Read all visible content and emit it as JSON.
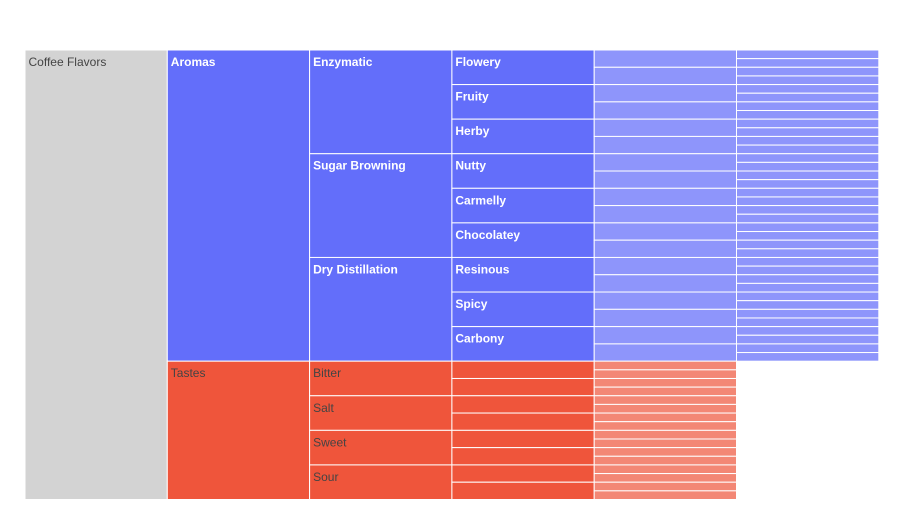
{
  "chart_data": {
    "type": "icicle",
    "root": {
      "label": "Coffee Flavors",
      "children": [
        {
          "label": "Aromas",
          "children": [
            {
              "label": "Enzymatic",
              "children": [
                {
                  "label": "Flowery",
                  "children": [
                    {
                      "label": "",
                      "children": [
                        {
                          "label": ""
                        },
                        {
                          "label": ""
                        }
                      ]
                    },
                    {
                      "label": "",
                      "children": [
                        {
                          "label": ""
                        },
                        {
                          "label": ""
                        }
                      ]
                    }
                  ]
                },
                {
                  "label": "Fruity",
                  "children": [
                    {
                      "label": "",
                      "children": [
                        {
                          "label": ""
                        },
                        {
                          "label": ""
                        }
                      ]
                    },
                    {
                      "label": "",
                      "children": [
                        {
                          "label": ""
                        },
                        {
                          "label": ""
                        }
                      ]
                    }
                  ]
                },
                {
                  "label": "Herby",
                  "children": [
                    {
                      "label": "",
                      "children": [
                        {
                          "label": ""
                        },
                        {
                          "label": ""
                        }
                      ]
                    },
                    {
                      "label": "",
                      "children": [
                        {
                          "label": ""
                        },
                        {
                          "label": ""
                        }
                      ]
                    }
                  ]
                }
              ]
            },
            {
              "label": "Sugar Browning",
              "children": [
                {
                  "label": "Nutty",
                  "children": [
                    {
                      "label": "",
                      "children": [
                        {
                          "label": ""
                        },
                        {
                          "label": ""
                        }
                      ]
                    },
                    {
                      "label": "",
                      "children": [
                        {
                          "label": ""
                        },
                        {
                          "label": ""
                        }
                      ]
                    }
                  ]
                },
                {
                  "label": "Carmelly",
                  "children": [
                    {
                      "label": "",
                      "children": [
                        {
                          "label": ""
                        },
                        {
                          "label": ""
                        }
                      ]
                    },
                    {
                      "label": "",
                      "children": [
                        {
                          "label": ""
                        },
                        {
                          "label": ""
                        }
                      ]
                    }
                  ]
                },
                {
                  "label": "Chocolatey",
                  "children": [
                    {
                      "label": "",
                      "children": [
                        {
                          "label": ""
                        },
                        {
                          "label": ""
                        }
                      ]
                    },
                    {
                      "label": "",
                      "children": [
                        {
                          "label": ""
                        },
                        {
                          "label": ""
                        }
                      ]
                    }
                  ]
                }
              ]
            },
            {
              "label": "Dry Distillation",
              "children": [
                {
                  "label": "Resinous",
                  "children": [
                    {
                      "label": "",
                      "children": [
                        {
                          "label": ""
                        },
                        {
                          "label": ""
                        }
                      ]
                    },
                    {
                      "label": "",
                      "children": [
                        {
                          "label": ""
                        },
                        {
                          "label": ""
                        }
                      ]
                    }
                  ]
                },
                {
                  "label": "Spicy",
                  "children": [
                    {
                      "label": "",
                      "children": [
                        {
                          "label": ""
                        },
                        {
                          "label": ""
                        }
                      ]
                    },
                    {
                      "label": "",
                      "children": [
                        {
                          "label": ""
                        },
                        {
                          "label": ""
                        }
                      ]
                    }
                  ]
                },
                {
                  "label": "Carbony",
                  "children": [
                    {
                      "label": "",
                      "children": [
                        {
                          "label": ""
                        },
                        {
                          "label": ""
                        }
                      ]
                    },
                    {
                      "label": "",
                      "children": [
                        {
                          "label": ""
                        },
                        {
                          "label": ""
                        }
                      ]
                    }
                  ]
                }
              ]
            }
          ]
        },
        {
          "label": "Tastes",
          "children": [
            {
              "label": "Bitter",
              "children": [
                {
                  "label": "",
                  "children": [
                    {
                      "label": ""
                    },
                    {
                      "label": ""
                    }
                  ]
                },
                {
                  "label": "",
                  "children": [
                    {
                      "label": ""
                    },
                    {
                      "label": ""
                    }
                  ]
                }
              ]
            },
            {
              "label": "Salt",
              "children": [
                {
                  "label": "",
                  "children": [
                    {
                      "label": ""
                    },
                    {
                      "label": ""
                    }
                  ]
                },
                {
                  "label": "",
                  "children": [
                    {
                      "label": ""
                    },
                    {
                      "label": ""
                    }
                  ]
                }
              ]
            },
            {
              "label": "Sweet",
              "children": [
                {
                  "label": "",
                  "children": [
                    {
                      "label": ""
                    },
                    {
                      "label": ""
                    }
                  ]
                },
                {
                  "label": "",
                  "children": [
                    {
                      "label": ""
                    },
                    {
                      "label": ""
                    }
                  ]
                }
              ]
            },
            {
              "label": "Sour",
              "children": [
                {
                  "label": "",
                  "children": [
                    {
                      "label": ""
                    },
                    {
                      "label": ""
                    }
                  ]
                },
                {
                  "label": "",
                  "children": [
                    {
                      "label": ""
                    },
                    {
                      "label": ""
                    }
                  ]
                }
              ]
            }
          ]
        }
      ]
    },
    "colors": {
      "root": "#d3d3d3",
      "branches": [
        "#636efa",
        "#ef553b"
      ],
      "deep_tints": [
        "#8e95fb",
        "#f38775"
      ],
      "border": "#ffffff",
      "text_on_root": "#444444",
      "text_on_aromas": "#ffffff",
      "text_on_tastes": "#444444"
    }
  }
}
